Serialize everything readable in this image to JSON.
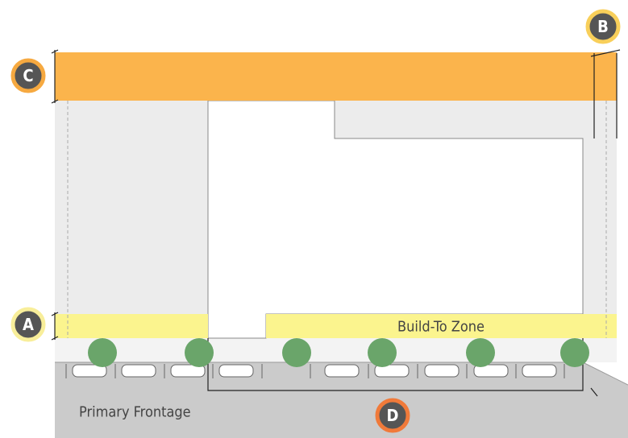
{
  "labels": {
    "a": "A",
    "b": "B",
    "c": "C",
    "d": "D"
  },
  "zone_label": "Build-To Zone",
  "frontage_label": "Primary Frontage"
}
